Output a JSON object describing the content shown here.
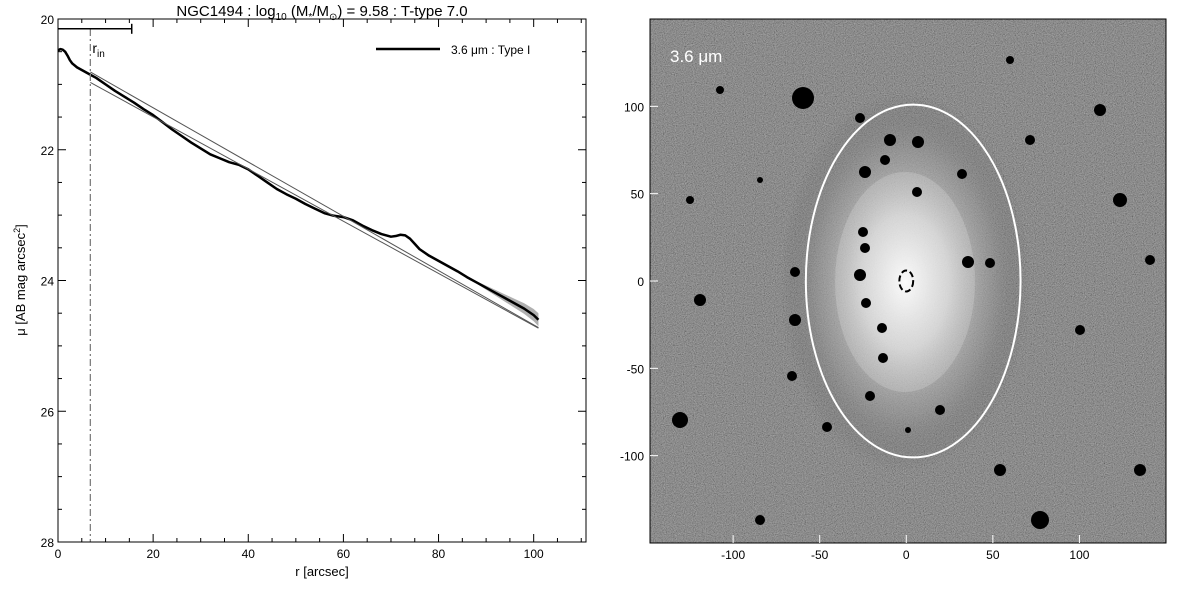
{
  "title": "NGC1494 : log10 (M*/M⊙) = 9.58 : T-type 7.0",
  "title_parts": {
    "name": "NGC1494 : log",
    "log_sub": "10",
    "mass_open": " (M",
    "mass_star_sub": "*",
    "mass_slash": "/M",
    "mass_sun_sub": "⊙",
    "rest": ") = 9.58 : T-type 7.0"
  },
  "chart_data": [
    {
      "type": "line",
      "xlabel": "r [arcsec]",
      "ylabel_main": "μ [AB mag arcsec",
      "ylabel_sup": "2",
      "ylabel_close": "]",
      "xlim": [
        0,
        111
      ],
      "ylim": [
        28,
        20
      ],
      "y_inverted": true,
      "x_ticks": [
        0,
        20,
        40,
        60,
        80,
        100
      ],
      "y_ticks": [
        20,
        22,
        24,
        26,
        28
      ],
      "legend": {
        "position": "top-right",
        "label": "3.6 μm : Type I",
        "color": "#000000"
      },
      "r_in": {
        "label": "r",
        "label_sub": "in",
        "x": 6.8,
        "color": "#808080"
      },
      "scale_bar": {
        "x_start": 0,
        "x_end": 15.5,
        "y": 20.15
      },
      "series": [
        {
          "name": "3.6 μm : Type I",
          "color": "#000000",
          "x": [
            0,
            0.5,
            1,
            1.5,
            2,
            2.5,
            3,
            4,
            5,
            6,
            7,
            8,
            10,
            12,
            14,
            16,
            18,
            20,
            22,
            24,
            26,
            28,
            30,
            32,
            34,
            36,
            38,
            40,
            42,
            44,
            46,
            48,
            50,
            52,
            54,
            56,
            58,
            60,
            62,
            64,
            66,
            68,
            70,
            71,
            72,
            73,
            74,
            75,
            76,
            78,
            80,
            82,
            84,
            86,
            88,
            90,
            92,
            94,
            96,
            98,
            100,
            101
          ],
          "y": [
            20.48,
            20.46,
            20.47,
            20.5,
            20.56,
            20.63,
            20.68,
            20.74,
            20.78,
            20.82,
            20.86,
            20.9,
            21.0,
            21.1,
            21.19,
            21.28,
            21.38,
            21.47,
            21.58,
            21.69,
            21.79,
            21.89,
            21.98,
            22.07,
            22.13,
            22.19,
            22.23,
            22.3,
            22.4,
            22.5,
            22.6,
            22.68,
            22.75,
            22.83,
            22.9,
            22.97,
            23.01,
            23.03,
            23.08,
            23.16,
            23.23,
            23.29,
            23.33,
            23.32,
            23.3,
            23.31,
            23.36,
            23.44,
            23.52,
            23.62,
            23.7,
            23.78,
            23.86,
            23.95,
            24.03,
            24.11,
            24.19,
            24.27,
            24.35,
            24.43,
            24.53,
            24.6
          ]
        },
        {
          "name": "",
          "color": "#555555",
          "x": [
            6.8,
            101
          ],
          "y": [
            20.81,
            24.72
          ]
        },
        {
          "name": "",
          "color": "#555555",
          "x": [
            6.8,
            101
          ],
          "y": [
            20.97,
            24.73
          ]
        }
      ],
      "uncertainty_band": {
        "color": "#b0b0b0",
        "x_start": 85,
        "x_end": 101,
        "half_width_end": 0.1
      }
    },
    {
      "type": "heatmap",
      "annotation": "3.6 μm",
      "xlim": [
        -148,
        150
      ],
      "ylim": [
        -150,
        150
      ],
      "x_ticks": [
        -100,
        -50,
        0,
        50,
        100
      ],
      "y_ticks": [
        100,
        50,
        0,
        -50,
        -100
      ],
      "outer_ellipse": {
        "center": [
          4,
          0
        ],
        "semi_x": 62,
        "semi_y": 101,
        "color": "#ffffff"
      },
      "inner_ellipse": {
        "center": [
          0,
          0
        ],
        "semi_x": 4,
        "semi_y": 6,
        "color": "#000000"
      }
    }
  ]
}
